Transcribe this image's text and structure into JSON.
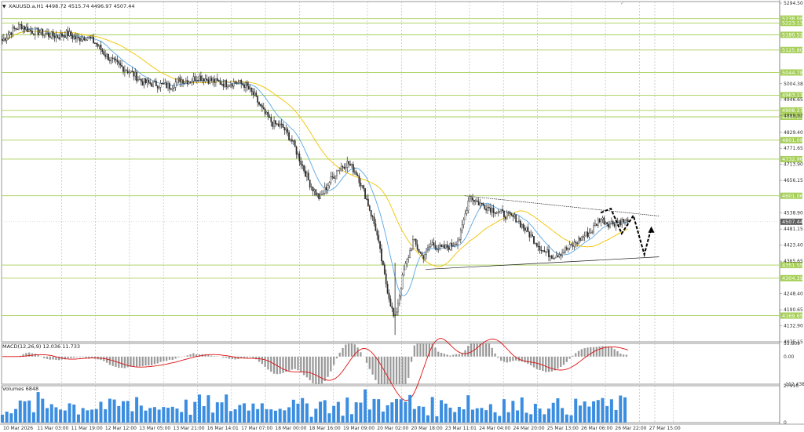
{
  "window": {
    "symbol_line": "XAUUSD.a,H1  4498.72 4515.74 4496.97 4507.44",
    "arrow_icon": "triangle-down-icon",
    "corner_icon": "tick-icon"
  },
  "chart_data": [
    {
      "type": "candlestick",
      "title": "XAUUSD.a,H1",
      "ohlc": {
        "open": 4498.72,
        "high": 4515.74,
        "low": 4496.97,
        "close": 4507.44
      },
      "ylim": [
        4075.15,
        5294.5
      ],
      "y_ticks": [
        "5294.50",
        "5004.38",
        "4946.65",
        "4888.92",
        "4829.40",
        "4771.65",
        "4713.90",
        "4656.15",
        "4538.90",
        "4481.15",
        "4423.40",
        "4365.65",
        "4248.40",
        "4190.65",
        "4132.90",
        "4075.15"
      ],
      "current_price": "4507.44",
      "horizontal_levels": [
        {
          "label": "5238.98",
          "value": 5238.98
        },
        {
          "label": "5223.13",
          "value": 5223.13
        },
        {
          "label": "5180.52",
          "value": 5180.52
        },
        {
          "label": "5125.80",
          "value": 5125.8
        },
        {
          "label": "5044.78",
          "value": 5044.78
        },
        {
          "label": "4963.11",
          "value": 4963.11
        },
        {
          "label": "4908.27",
          "value": 4908.27
        },
        {
          "label": "4885.24",
          "value": 4885.24
        },
        {
          "label": "4801.09",
          "value": 4801.09
        },
        {
          "label": "4732.96",
          "value": 4732.96
        },
        {
          "label": "4601.06",
          "value": 4601.06
        },
        {
          "label": "4351.55",
          "value": 4351.55
        },
        {
          "label": "4304.39",
          "value": 4304.39
        },
        {
          "label": "4169.65",
          "value": 4169.65
        }
      ],
      "x_labels": [
        "10 Mar 2026",
        "11 Mar 03:00",
        "11 Mar 19:00",
        "12 Mar 12:00",
        "13 Mar 05:00",
        "13 Mar 21:00",
        "16 Mar 14:01",
        "17 Mar 07:00",
        "18 Mar 00:00",
        "18 Mar 16:00",
        "19 Mar 09:00",
        "20 Mar 02:00",
        "20 Mar 18:00",
        "23 Mar 11:01",
        "24 Mar 04:00",
        "24 Mar 20:00",
        "25 Mar 13:00",
        "26 Mar 06:00",
        "26 Mar 22:00",
        "27 Mar 15:00"
      ],
      "close_path": [
        5160,
        5195,
        5215,
        5195,
        5190,
        5180,
        5175,
        5185,
        5165,
        5175,
        5150,
        5110,
        5080,
        5060,
        5040,
        5010,
        5005,
        5000,
        4995,
        5020,
        5015,
        5030,
        5020,
        5010,
        5005,
        5010,
        5000,
        4960,
        4900,
        4860,
        4850,
        4800,
        4720,
        4640,
        4590,
        4650,
        4700,
        4720,
        4680,
        4590,
        4480,
        4300,
        4150,
        4330,
        4440,
        4380,
        4430,
        4410,
        4420,
        4450,
        4600,
        4575,
        4560,
        4545,
        4530,
        4520,
        4480,
        4440,
        4400,
        4385,
        4400,
        4420,
        4450,
        4470,
        4520,
        4500,
        4510,
        4507
      ],
      "moving_averages": [
        {
          "name": "fast",
          "color": "#5aa7e6"
        },
        {
          "name": "slow",
          "color": "#f2c200"
        }
      ],
      "pattern": {
        "name": "symmetrical triangle",
        "upper": [
          {
            "t": 0.595,
            "p": 4601
          },
          {
            "t": 0.845,
            "p": 4528
          }
        ],
        "lower": [
          {
            "t": 0.545,
            "p": 4336
          },
          {
            "t": 0.845,
            "p": 4381
          }
        ],
        "forecast_zigzag": [
          {
            "t": 0.77,
            "p": 4540
          },
          {
            "t": 0.783,
            "p": 4555
          },
          {
            "t": 0.797,
            "p": 4465
          },
          {
            "t": 0.812,
            "p": 4530
          },
          {
            "t": 0.826,
            "p": 4390
          },
          {
            "t": 0.835,
            "p": 4485
          }
        ]
      }
    },
    {
      "type": "macd",
      "title": "MACD(12,26,9) 12.036 11.733",
      "ylim": [
        -112.438,
        53.809
      ],
      "y_ticks": [
        "53.809",
        "0.00",
        "-112.438"
      ],
      "signal_color": "#dd1111",
      "histogram_color": "#9a9a9a"
    },
    {
      "type": "volume",
      "title": "Volumes 6848",
      "ylim": [
        0,
        27916
      ],
      "y_ticks": [
        "27916",
        "0"
      ],
      "bar_color": "#3b8de0"
    }
  ]
}
